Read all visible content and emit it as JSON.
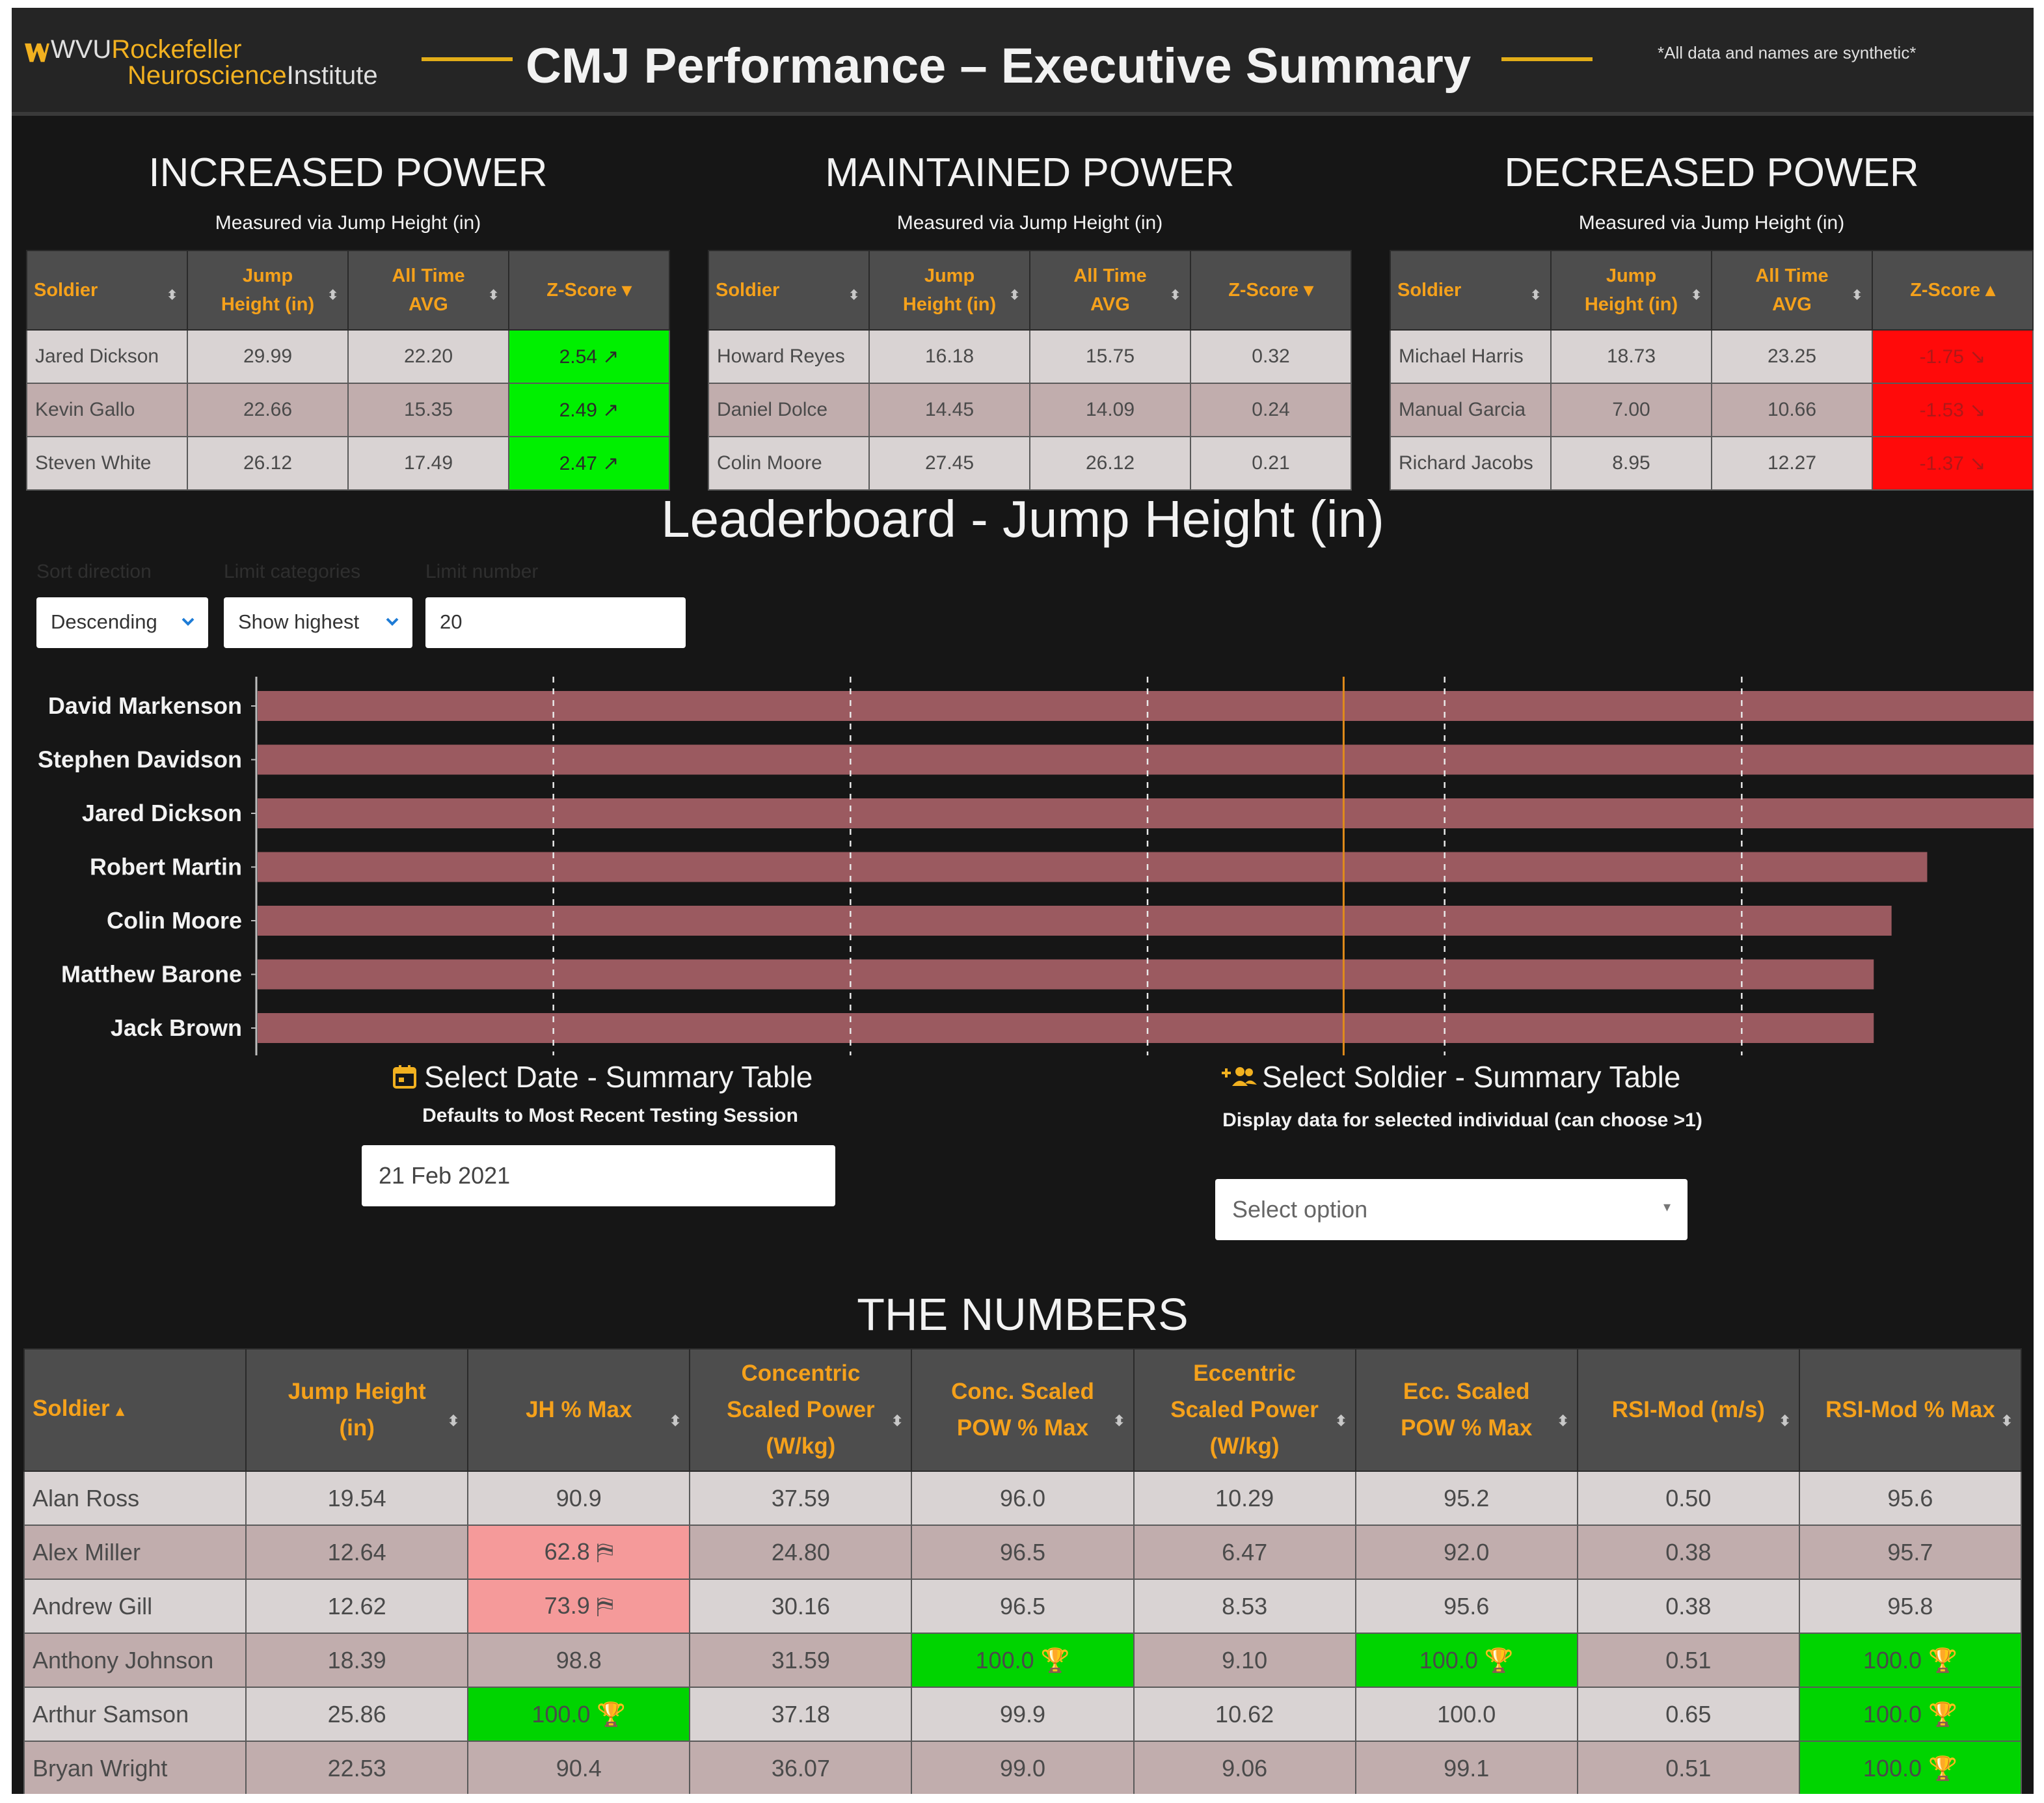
{
  "header": {
    "logo_org": "WVU",
    "logo_line1": "Rockefeller",
    "logo_line2a": "Neuroscience",
    "logo_line2b": "Institute",
    "title": "CMJ Performance – Executive Summary",
    "note": "*All data and names are synthetic*"
  },
  "panels": [
    {
      "title": "INCREASED POWER",
      "subtitle": "Measured via Jump Height (in)",
      "col_soldier": "Soldier",
      "col_jh1": "Jump",
      "col_jh2": "Height (in)",
      "col_avg1": "All Time",
      "col_avg2": "AVG",
      "col_z": "Z-Score",
      "z_sort": "▾",
      "rows": [
        {
          "name": "Jared Dickson",
          "jh": "29.99",
          "avg": "22.20",
          "z": "2.54 ↗"
        },
        {
          "name": "Kevin Gallo",
          "jh": "22.66",
          "avg": "15.35",
          "z": "2.49 ↗"
        },
        {
          "name": "Steven White",
          "jh": "26.12",
          "avg": "17.49",
          "z": "2.47 ↗"
        }
      ]
    },
    {
      "title": "MAINTAINED POWER",
      "subtitle": "Measured via Jump Height (in)",
      "col_soldier": "Soldier",
      "col_jh1": "Jump",
      "col_jh2": "Height (in)",
      "col_avg1": "All Time",
      "col_avg2": "AVG",
      "col_z": "Z-Score",
      "z_sort": "▾",
      "rows": [
        {
          "name": "Howard Reyes",
          "jh": "16.18",
          "avg": "15.75",
          "z": "0.32"
        },
        {
          "name": "Daniel Dolce",
          "jh": "14.45",
          "avg": "14.09",
          "z": "0.24"
        },
        {
          "name": "Colin Moore",
          "jh": "27.45",
          "avg": "26.12",
          "z": "0.21"
        }
      ]
    },
    {
      "title": "DECREASED POWER",
      "subtitle": "Measured via Jump Height (in)",
      "col_soldier": "Soldier",
      "col_jh1": "Jump",
      "col_jh2": "Height (in)",
      "col_avg1": "All Time",
      "col_avg2": "AVG",
      "col_z": "Z-Score",
      "z_sort": "▴",
      "rows": [
        {
          "name": "Michael Harris",
          "jh": "18.73",
          "avg": "23.25",
          "z": "-1.75 ↘"
        },
        {
          "name": "Manual Garcia",
          "jh": "7.00",
          "avg": "10.66",
          "z": "-1.53 ↘"
        },
        {
          "name": "Richard Jacobs",
          "jh": "8.95",
          "avg": "12.27",
          "z": "-1.37 ↘"
        }
      ]
    }
  ],
  "leaderboard": {
    "title": "Leaderboard - Jump Height (in)",
    "controls": {
      "sort_label": "Sort direction",
      "sort_value": "Descending",
      "limit_label": "Limit categories",
      "limit_value": "Show highest",
      "number_label": "Limit number",
      "number_value": "20"
    }
  },
  "chart_data": {
    "type": "bar",
    "orientation": "horizontal",
    "title": "Leaderboard - Jump Height (in)",
    "categories": [
      "David Markenson",
      "Stephen Davidson",
      "Jared Dickson",
      "Robert Martin",
      "Colin Moore",
      "Matthew Barone",
      "Jack Brown"
    ],
    "values": [
      31.0,
      30.6,
      30.0,
      28.1,
      27.5,
      27.2,
      27.2
    ],
    "xlim": [
      0,
      30
    ],
    "gridlines": [
      5,
      10,
      15,
      20,
      25
    ],
    "average_line": 18.3,
    "bar_color": "#9b5a60",
    "average_line_color": "#e08b1a"
  },
  "select_date": {
    "title": "Select Date - Summary Table",
    "subtitle": "Defaults to Most Recent Testing Session",
    "value": "21 Feb 2021"
  },
  "select_soldier": {
    "title": "Select Soldier - Summary Table",
    "subtitle": "Display data for selected individual (can choose >1)",
    "placeholder": "Select option"
  },
  "numbers": {
    "title": "THE NUMBERS",
    "columns": [
      {
        "l1": "Soldier",
        "l2": "",
        "l3": "",
        "sort": "▴"
      },
      {
        "l1": "Jump Height",
        "l2": "(in)",
        "l3": "",
        "sort": "⬍"
      },
      {
        "l1": "JH % Max",
        "l2": "",
        "l3": "",
        "sort": "⬍"
      },
      {
        "l1": "Concentric",
        "l2": "Scaled Power",
        "l3": "(W/kg)",
        "sort": "⬍"
      },
      {
        "l1": "Conc. Scaled",
        "l2": "POW % Max",
        "l3": "",
        "sort": "⬍"
      },
      {
        "l1": "Eccentric",
        "l2": "Scaled Power",
        "l3": "(W/kg)",
        "sort": "⬍"
      },
      {
        "l1": "Ecc. Scaled",
        "l2": "POW % Max",
        "l3": "",
        "sort": "⬍"
      },
      {
        "l1": "RSI-Mod (m/s)",
        "l2": "",
        "l3": "",
        "sort": "⬍"
      },
      {
        "l1": "RSI-Mod % Max",
        "l2": "",
        "l3": "",
        "sort": "⬍"
      }
    ],
    "rows": [
      {
        "cells": [
          "Alan Ross",
          "19.54",
          "90.9",
          "37.59",
          "96.0",
          "10.29",
          "95.2",
          "0.50",
          "95.6"
        ],
        "flags": [
          "",
          "",
          "",
          "",
          "",
          "",
          "",
          "",
          ""
        ]
      },
      {
        "cells": [
          "Alex Miller",
          "12.64",
          "62.8 ⛿",
          "24.80",
          "96.5",
          "6.47",
          "92.0",
          "0.38",
          "95.7"
        ],
        "flags": [
          "",
          "",
          "pink",
          "",
          "",
          "",
          "",
          "",
          ""
        ]
      },
      {
        "cells": [
          "Andrew Gill",
          "12.62",
          "73.9 ⛿",
          "30.16",
          "96.5",
          "8.53",
          "95.6",
          "0.38",
          "95.8"
        ],
        "flags": [
          "",
          "",
          "pink",
          "",
          "",
          "",
          "",
          "",
          ""
        ]
      },
      {
        "cells": [
          "Anthony Johnson",
          "18.39",
          "98.8",
          "31.59",
          "100.0 🏆",
          "9.10",
          "100.0 🏆",
          "0.51",
          "100.0 🏆"
        ],
        "flags": [
          "",
          "",
          "",
          "",
          "green",
          "",
          "green",
          "",
          "green"
        ]
      },
      {
        "cells": [
          "Arthur Samson",
          "25.86",
          "100.0 🏆",
          "37.18",
          "99.9",
          "10.62",
          "100.0",
          "0.65",
          "100.0 🏆"
        ],
        "flags": [
          "",
          "",
          "green",
          "",
          "",
          "",
          "",
          "",
          "green"
        ]
      },
      {
        "cells": [
          "Bryan Wright",
          "22.53",
          "90.4",
          "36.07",
          "99.0",
          "9.06",
          "99.1",
          "0.51",
          "100.0 🏆"
        ],
        "flags": [
          "",
          "",
          "",
          "",
          "",
          "",
          "",
          "",
          "green"
        ]
      }
    ]
  }
}
